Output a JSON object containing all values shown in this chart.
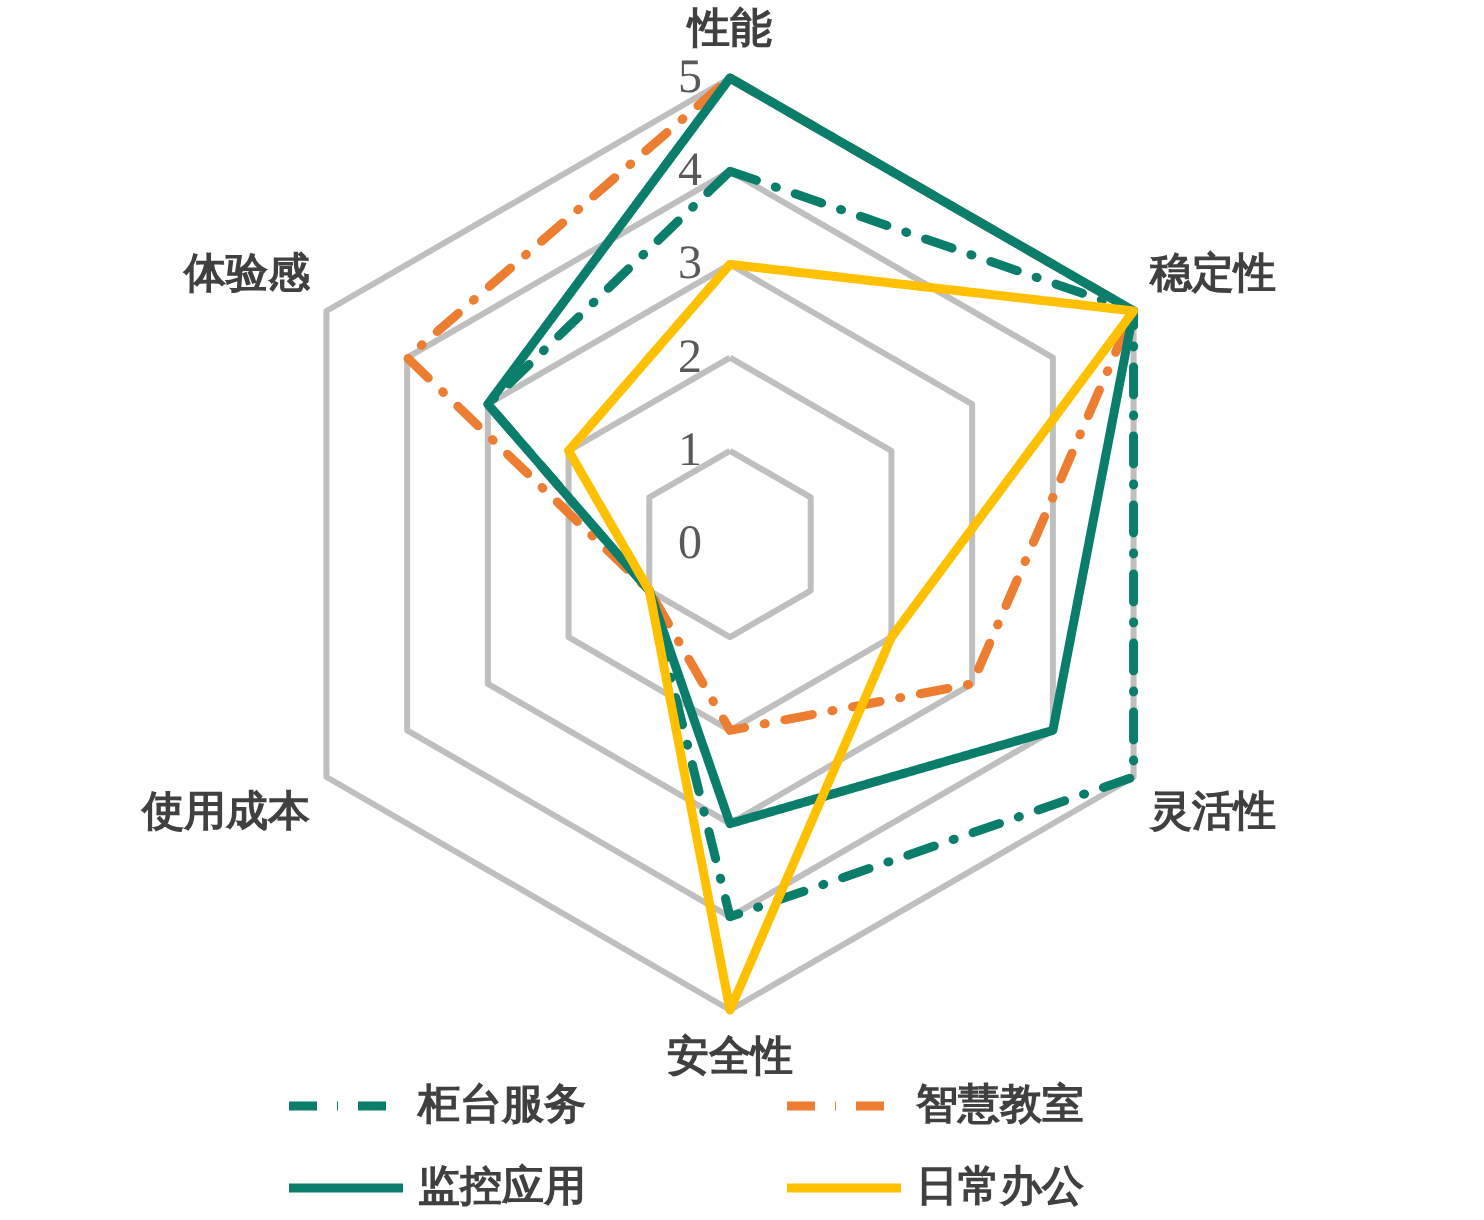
{
  "chart_data": {
    "type": "radar",
    "categories": [
      "性能",
      "稳定性",
      "灵活性",
      "安全性",
      "使用成本",
      "体验感"
    ],
    "ylim": [
      0,
      5
    ],
    "yticks": [
      0,
      1,
      2,
      3,
      4,
      5
    ],
    "grid": true,
    "legend": "bottom",
    "series": [
      {
        "name": "柜台服务",
        "color": "#0a7d6b",
        "line_style": "dashed",
        "values": [
          4,
          5,
          5,
          4,
          1,
          3
        ]
      },
      {
        "name": "智慧教室",
        "color": "#ed7d31",
        "line_style": "dashed",
        "values": [
          5,
          5,
          3,
          2,
          1,
          4
        ]
      },
      {
        "name": "监控应用",
        "color": "#0a7d6b",
        "line_style": "solid",
        "values": [
          5,
          5,
          4,
          3,
          1,
          3
        ]
      },
      {
        "name": "日常办公",
        "color": "#ffc000",
        "line_style": "solid",
        "values": [
          3,
          5,
          2,
          5,
          1,
          2
        ]
      }
    ]
  }
}
